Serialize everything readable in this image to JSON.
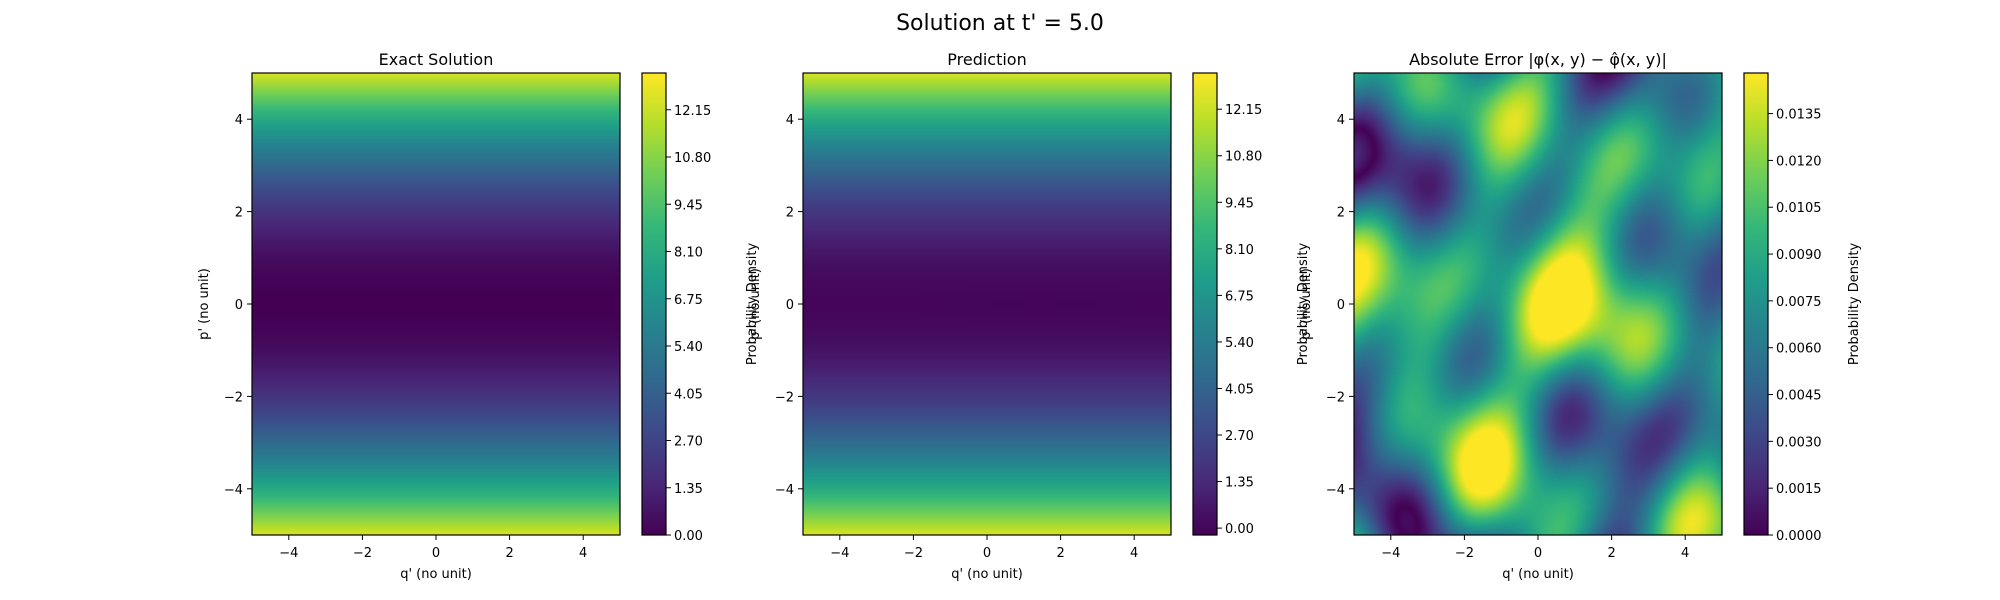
{
  "figure_title": "Solution at t' = 5.0",
  "colormap": [
    "#440154",
    "#482878",
    "#3e4989",
    "#31688e",
    "#26828e",
    "#1f9e89",
    "#35b779",
    "#6ece58",
    "#b5de2b",
    "#fde725"
  ],
  "chart_data": [
    {
      "type": "heatmap",
      "title": "Exact Solution",
      "xlabel": "q' (no unit)",
      "ylabel": "p' (no unit)",
      "xlim": [
        -5,
        5
      ],
      "ylim": [
        -5,
        5
      ],
      "xticks": [
        "−4",
        "−2",
        "0",
        "2",
        "4"
      ],
      "yticks": [
        "−4",
        "−2",
        "0",
        "2",
        "4"
      ],
      "field": "p'^2 / 2 (uniform in q')",
      "colorbar": {
        "label": "Probability Density",
        "range": [
          0,
          13.2
        ],
        "ticks": [
          0.0,
          1.35,
          2.7,
          4.05,
          5.4,
          6.75,
          8.1,
          9.45,
          10.8,
          12.15
        ],
        "tick_labels": [
          "0.00",
          "1.35",
          "2.70",
          "4.05",
          "5.40",
          "6.75",
          "8.10",
          "9.45",
          "10.80",
          "12.15"
        ]
      }
    },
    {
      "type": "heatmap",
      "title": "Prediction",
      "xlabel": "q' (no unit)",
      "ylabel": "p' (no unit)",
      "xlim": [
        -5,
        5
      ],
      "ylim": [
        -5,
        5
      ],
      "xticks": [
        "−4",
        "−2",
        "0",
        "2",
        "4"
      ],
      "yticks": [
        "−4",
        "−2",
        "0",
        "2",
        "4"
      ],
      "field": "p'^2 / 2 (uniform in q')",
      "colorbar": {
        "label": "Probability Density",
        "range": [
          -0.2,
          13.2
        ],
        "ticks": [
          0.0,
          1.35,
          2.7,
          4.05,
          5.4,
          6.75,
          8.1,
          9.45,
          10.8,
          12.15
        ],
        "tick_labels": [
          "0.00",
          "1.35",
          "2.70",
          "4.05",
          "5.40",
          "6.75",
          "8.10",
          "9.45",
          "10.80",
          "12.15"
        ]
      }
    },
    {
      "type": "heatmap",
      "title": "Absolute Error",
      "title_math": "|φ(x, y) − φ̂(x, y)|",
      "xlabel": "q' (no unit)",
      "ylabel": "p' (no unit)",
      "xlim": [
        -5,
        5
      ],
      "ylim": [
        -5,
        5
      ],
      "xticks": [
        "−4",
        "−2",
        "0",
        "2",
        "4"
      ],
      "yticks": [
        "−4",
        "−2",
        "0",
        "2",
        "4"
      ],
      "field": "oscillatory error pattern, max ≈ 0.0148",
      "colorbar": {
        "label": "Probability Density",
        "range": [
          0,
          0.0148
        ],
        "ticks": [
          0.0,
          0.0015,
          0.003,
          0.0045,
          0.006,
          0.0075,
          0.009,
          0.0105,
          0.012,
          0.0135
        ],
        "tick_labels": [
          "0.0000",
          "0.0015",
          "0.0030",
          "0.0045",
          "0.0060",
          "0.0075",
          "0.0090",
          "0.0105",
          "0.0120",
          "0.0135"
        ]
      }
    }
  ]
}
